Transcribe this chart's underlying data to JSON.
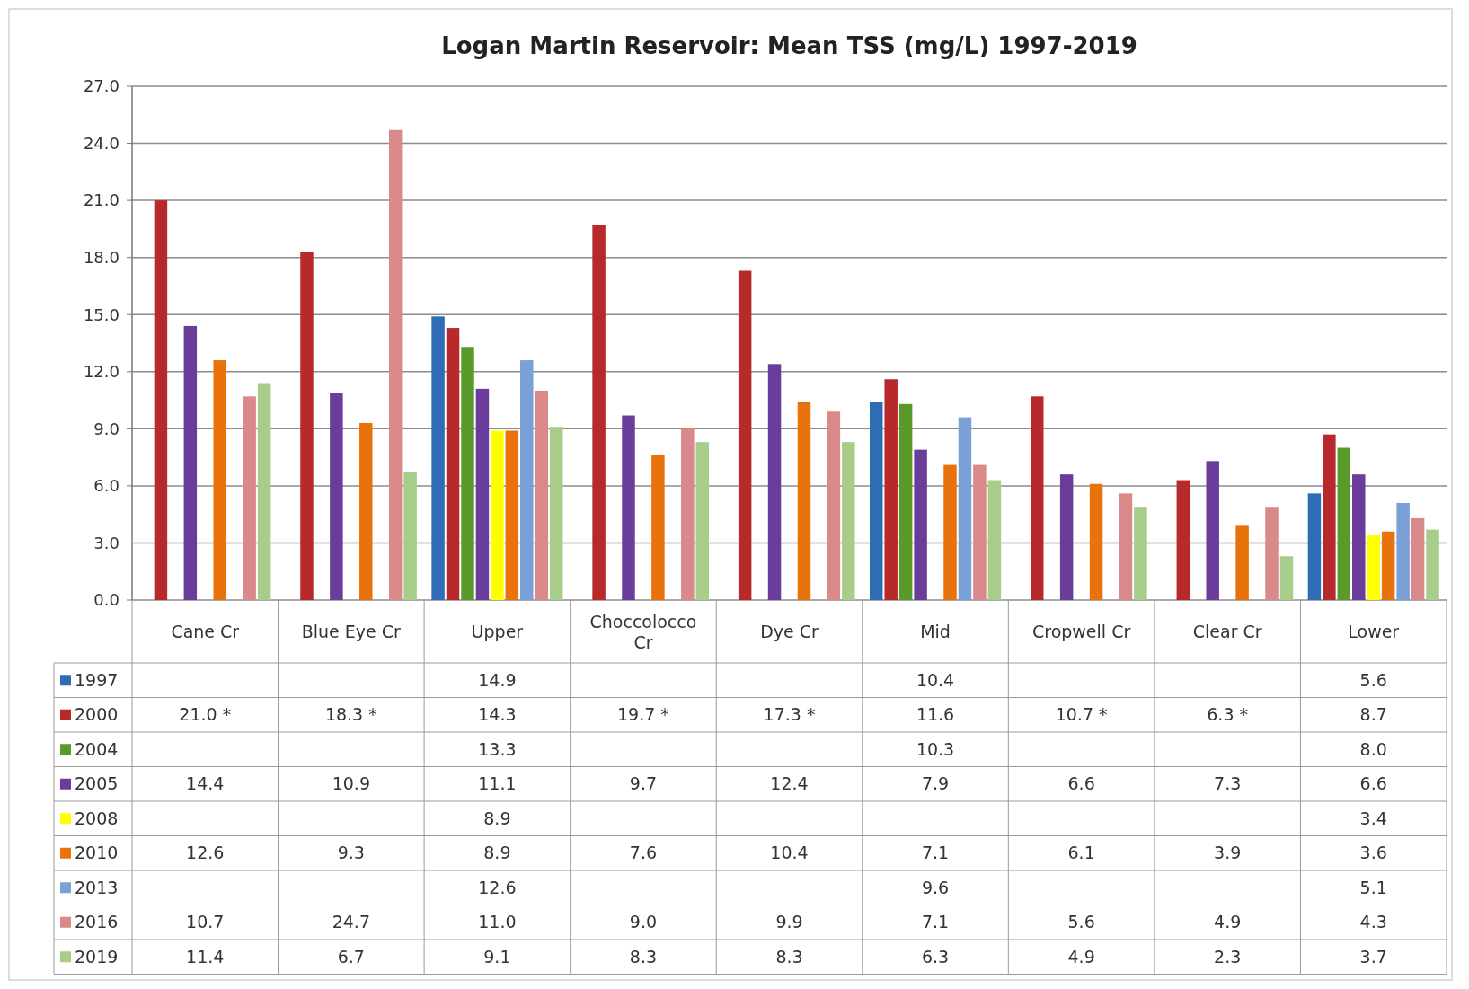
{
  "chart_data": {
    "type": "bar",
    "title": "Logan Martin Reservoir: Mean TSS (mg/L) 1997-2019",
    "categories": [
      "Cane Cr",
      "Blue Eye Cr",
      "Upper",
      "Choccolocco Cr",
      "Dye Cr",
      "Mid",
      "Cropwell Cr",
      "Clear Cr",
      "Lower"
    ],
    "ylim": [
      0,
      27
    ],
    "yticks": [
      {
        "value": 0,
        "label": "0.0"
      },
      {
        "value": 3,
        "label": "3.0"
      },
      {
        "value": 6,
        "label": "6.0"
      },
      {
        "value": 9,
        "label": "9.0"
      },
      {
        "value": 12,
        "label": "12.0"
      },
      {
        "value": 15,
        "label": "15.0"
      },
      {
        "value": 18,
        "label": "18.0"
      },
      {
        "value": 21,
        "label": "21.0"
      },
      {
        "value": 24,
        "label": "24.0"
      },
      {
        "value": 27,
        "label": "27.0"
      }
    ],
    "grid": "y",
    "legend": "bottom left",
    "series": [
      {
        "name": "1997",
        "color": "#2e6db5",
        "values": [
          null,
          null,
          14.9,
          null,
          null,
          10.4,
          null,
          null,
          5.6
        ],
        "value_labels": [
          null,
          null,
          "14.9",
          null,
          null,
          "10.4",
          null,
          null,
          "5.6"
        ]
      },
      {
        "name": "2000",
        "color": "#b8292b",
        "values": [
          21.0,
          18.3,
          14.3,
          19.7,
          17.3,
          11.6,
          10.7,
          6.3,
          8.7
        ],
        "value_labels": [
          "21.0 *",
          "18.3 *",
          "14.3",
          "19.7 *",
          "17.3 *",
          "11.6",
          "10.7 *",
          "6.3 *",
          "8.7"
        ]
      },
      {
        "name": "2004",
        "color": "#5a9a2a",
        "values": [
          null,
          null,
          13.3,
          null,
          null,
          10.3,
          null,
          null,
          8.0
        ],
        "value_labels": [
          null,
          null,
          "13.3",
          null,
          null,
          "10.3",
          null,
          null,
          "8.0"
        ]
      },
      {
        "name": "2005",
        "color": "#6a3d9a",
        "values": [
          14.4,
          10.9,
          11.1,
          9.7,
          12.4,
          7.9,
          6.6,
          7.3,
          6.6
        ],
        "value_labels": [
          "14.4",
          "10.9",
          "11.1",
          "9.7",
          "12.4",
          "7.9",
          "6.6",
          "7.3",
          "6.6"
        ]
      },
      {
        "name": "2008",
        "color": "#ffff00",
        "values": [
          null,
          null,
          8.9,
          null,
          null,
          null,
          null,
          null,
          3.4
        ],
        "value_labels": [
          null,
          null,
          "8.9",
          null,
          null,
          null,
          null,
          null,
          "3.4"
        ]
      },
      {
        "name": "2010",
        "color": "#e8720c",
        "values": [
          12.6,
          9.3,
          8.9,
          7.6,
          10.4,
          7.1,
          6.1,
          3.9,
          3.6
        ],
        "value_labels": [
          "12.6",
          "9.3",
          "8.9",
          "7.6",
          "10.4",
          "7.1",
          "6.1",
          "3.9",
          "3.6"
        ]
      },
      {
        "name": "2013",
        "color": "#7aa0d8",
        "values": [
          null,
          null,
          12.6,
          null,
          null,
          9.6,
          null,
          null,
          5.1
        ],
        "value_labels": [
          null,
          null,
          "12.6",
          null,
          null,
          "9.6",
          null,
          null,
          "5.1"
        ]
      },
      {
        "name": "2016",
        "color": "#d9898a",
        "values": [
          10.7,
          24.7,
          11.0,
          9.0,
          9.9,
          7.1,
          5.6,
          4.9,
          4.3
        ],
        "value_labels": [
          "10.7",
          "24.7",
          "11.0",
          "9.0",
          "9.9",
          "7.1",
          "5.6",
          "4.9",
          "4.3"
        ]
      },
      {
        "name": "2019",
        "color": "#a8cd8a",
        "values": [
          11.4,
          6.7,
          9.1,
          8.3,
          8.3,
          6.3,
          4.9,
          2.3,
          3.7
        ],
        "value_labels": [
          "11.4",
          "6.7",
          "9.1",
          "8.3",
          "8.3",
          "6.3",
          "4.9",
          "2.3",
          "3.7"
        ]
      }
    ]
  }
}
